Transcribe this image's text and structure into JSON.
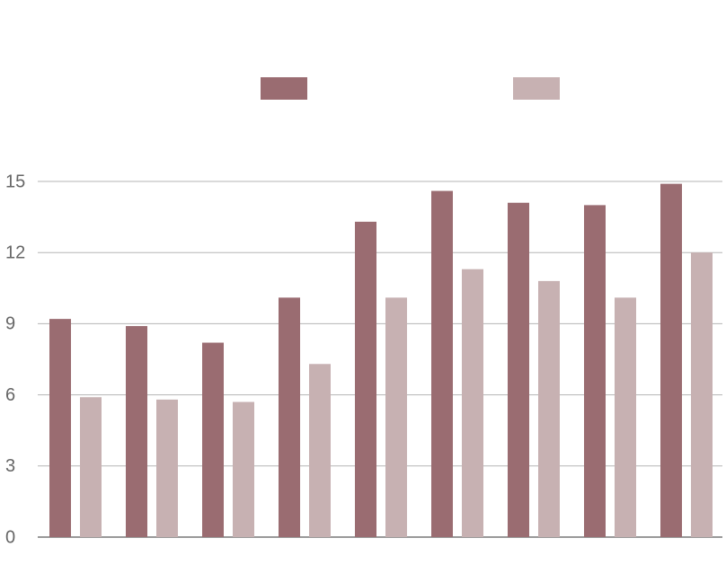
{
  "chart_data": {
    "type": "bar",
    "categories": [
      null,
      null,
      null,
      null,
      null,
      null,
      null,
      null,
      null
    ],
    "series": [
      {
        "color": "#9a6c71",
        "values": [
          9.2,
          8.9,
          8.2,
          10.1,
          13.3,
          14.6,
          14.1,
          14.0,
          14.9
        ]
      },
      {
        "color": "#c7b1b2",
        "values": [
          5.9,
          5.8,
          5.7,
          7.3,
          10.1,
          11.3,
          10.8,
          10.1,
          12.0
        ]
      }
    ],
    "ylim": [
      0,
      15
    ],
    "yticks": [
      0,
      3,
      6,
      9,
      12,
      15
    ],
    "grid": true,
    "legend": "top"
  }
}
